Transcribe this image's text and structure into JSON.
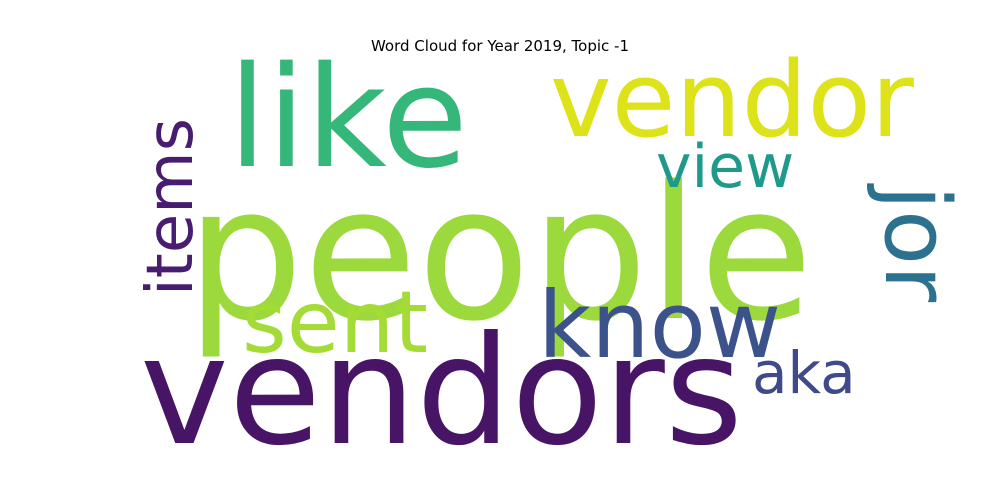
{
  "chart_data": {
    "type": "wordcloud",
    "title": "Word Cloud for Year 2019, Topic -1",
    "words": [
      {
        "text": "people",
        "color": "#9bd93c"
      },
      {
        "text": "vendors",
        "color": "#471466"
      },
      {
        "text": "like",
        "color": "#35b779"
      },
      {
        "text": "vendor",
        "color": "#dde318"
      },
      {
        "text": "know",
        "color": "#3b528b"
      },
      {
        "text": "sent",
        "color": "#a5db36"
      },
      {
        "text": "items",
        "color": "#481d6f"
      },
      {
        "text": "jor",
        "color": "#2c728e"
      },
      {
        "text": "view",
        "color": "#1f9a8a"
      },
      {
        "text": "aka",
        "color": "#3e4a89"
      }
    ]
  }
}
